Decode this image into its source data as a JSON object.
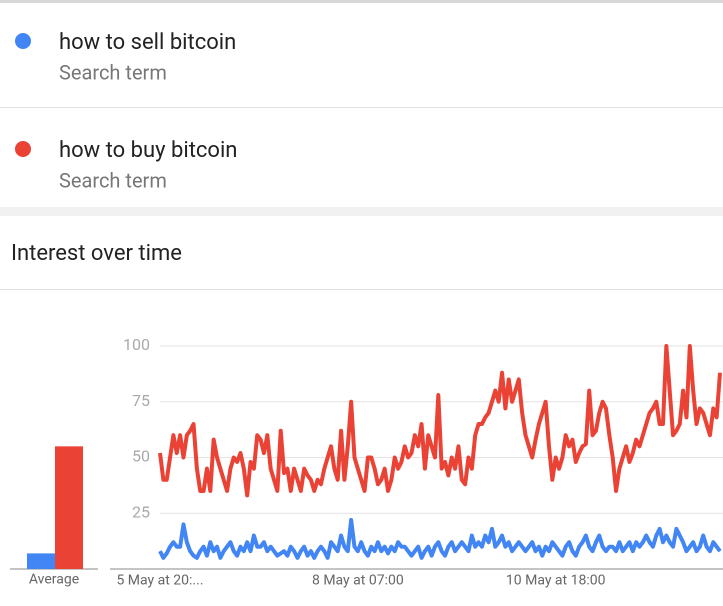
{
  "search_term_label": "Search term",
  "section_title": "Interest over time",
  "chart_data": {
    "type": "line",
    "average_label": "Average",
    "ylim": [
      0,
      100
    ],
    "yticks": [
      25,
      50,
      75,
      100
    ],
    "grid": true,
    "categories": [
      "5 May at 20:...",
      null,
      null,
      null,
      null,
      null,
      null,
      null,
      null,
      null,
      null,
      null,
      null,
      null,
      null,
      null,
      null,
      null,
      null,
      null,
      null,
      null,
      null,
      null,
      null,
      null,
      null,
      null,
      null,
      null,
      null,
      null,
      null,
      null,
      null,
      null,
      null,
      null,
      null,
      null,
      null,
      null,
      null,
      null,
      null,
      null,
      null,
      null,
      null,
      null,
      null,
      null,
      null,
      null,
      null,
      null,
      null,
      null,
      null,
      "8 May at 07:00",
      null,
      null,
      null,
      null,
      null,
      null,
      null,
      null,
      null,
      null,
      null,
      null,
      null,
      null,
      null,
      null,
      null,
      null,
      null,
      null,
      null,
      null,
      null,
      null,
      null,
      null,
      null,
      null,
      null,
      null,
      null,
      null,
      null,
      null,
      null,
      null,
      null,
      null,
      null,
      null,
      null,
      null,
      null,
      null,
      null,
      null,
      null,
      null,
      null,
      null,
      null,
      null,
      null,
      null,
      null,
      null,
      null,
      null,
      "10 May at 18:00",
      null,
      null,
      null,
      null,
      null,
      null,
      null,
      null,
      null,
      null,
      null,
      null,
      null,
      null,
      null,
      null,
      null,
      null,
      null,
      null,
      null,
      null,
      null,
      null,
      null,
      null,
      null,
      null,
      null,
      null,
      null,
      null,
      null,
      null,
      null,
      null,
      null,
      null,
      null,
      null,
      null,
      null,
      null,
      null,
      null,
      null,
      null,
      null,
      null
    ],
    "series": [
      {
        "name": "how to sell bitcoin",
        "color": "#4285f4",
        "average": 7,
        "values": [
          8,
          5,
          7,
          10,
          12,
          10,
          10,
          20,
          12,
          8,
          6,
          5,
          8,
          10,
          6,
          12,
          8,
          10,
          5,
          8,
          10,
          12,
          8,
          6,
          10,
          8,
          12,
          8,
          15,
          10,
          10,
          12,
          8,
          10,
          8,
          6,
          7,
          8,
          6,
          10,
          8,
          5,
          8,
          10,
          6,
          8,
          5,
          8,
          10,
          8,
          5,
          12,
          10,
          8,
          15,
          10,
          8,
          22,
          10,
          8,
          12,
          8,
          6,
          10,
          8,
          12,
          8,
          10,
          7,
          10,
          8,
          12,
          10,
          10,
          8,
          6,
          8,
          10,
          5,
          8,
          10,
          6,
          10,
          12,
          8,
          6,
          10,
          12,
          8,
          10,
          12,
          10,
          8,
          15,
          10,
          12,
          10,
          15,
          12,
          18,
          10,
          12,
          15,
          10,
          12,
          8,
          10,
          12,
          10,
          8,
          10,
          12,
          8,
          10,
          6,
          10,
          8,
          12,
          10,
          8,
          6,
          10,
          12,
          8,
          6,
          10,
          12,
          15,
          10,
          8,
          12,
          15,
          10,
          8,
          10,
          10,
          8,
          12,
          8,
          10,
          12,
          8,
          12,
          10,
          12,
          15,
          12,
          10,
          15,
          18,
          12,
          15,
          12,
          10,
          18,
          15,
          12,
          8,
          10,
          12,
          8,
          10,
          15,
          10,
          8,
          12,
          10,
          8
        ]
      },
      {
        "name": "how to buy bitcoin",
        "color": "#ea4335",
        "average": 55,
        "values": [
          52,
          40,
          40,
          50,
          60,
          52,
          60,
          50,
          60,
          62,
          65,
          45,
          35,
          35,
          45,
          35,
          58,
          50,
          45,
          40,
          35,
          45,
          50,
          48,
          52,
          45,
          33,
          48,
          45,
          60,
          58,
          52,
          60,
          45,
          40,
          35,
          62,
          43,
          45,
          35,
          45,
          40,
          35,
          45,
          42,
          40,
          35,
          40,
          38,
          45,
          50,
          55,
          45,
          40,
          62,
          40,
          55,
          75,
          50,
          45,
          40,
          35,
          50,
          50,
          45,
          38,
          40,
          45,
          35,
          40,
          50,
          45,
          48,
          55,
          50,
          52,
          60,
          55,
          65,
          45,
          60,
          55,
          50,
          78,
          45,
          48,
          42,
          50,
          45,
          55,
          40,
          38,
          50,
          45,
          60,
          65,
          65,
          68,
          70,
          75,
          80,
          75,
          88,
          72,
          85,
          75,
          80,
          85,
          70,
          60,
          55,
          50,
          58,
          65,
          70,
          75,
          55,
          40,
          50,
          45,
          50,
          60,
          55,
          58,
          48,
          52,
          55,
          56,
          80,
          60,
          62,
          70,
          75,
          72,
          60,
          50,
          35,
          45,
          50,
          55,
          48,
          52,
          58,
          55,
          60,
          65,
          70,
          72,
          75,
          65,
          65,
          100,
          80,
          60,
          62,
          65,
          80,
          68,
          100,
          80,
          65,
          72,
          70,
          65,
          60,
          72,
          68,
          88
        ]
      }
    ]
  }
}
